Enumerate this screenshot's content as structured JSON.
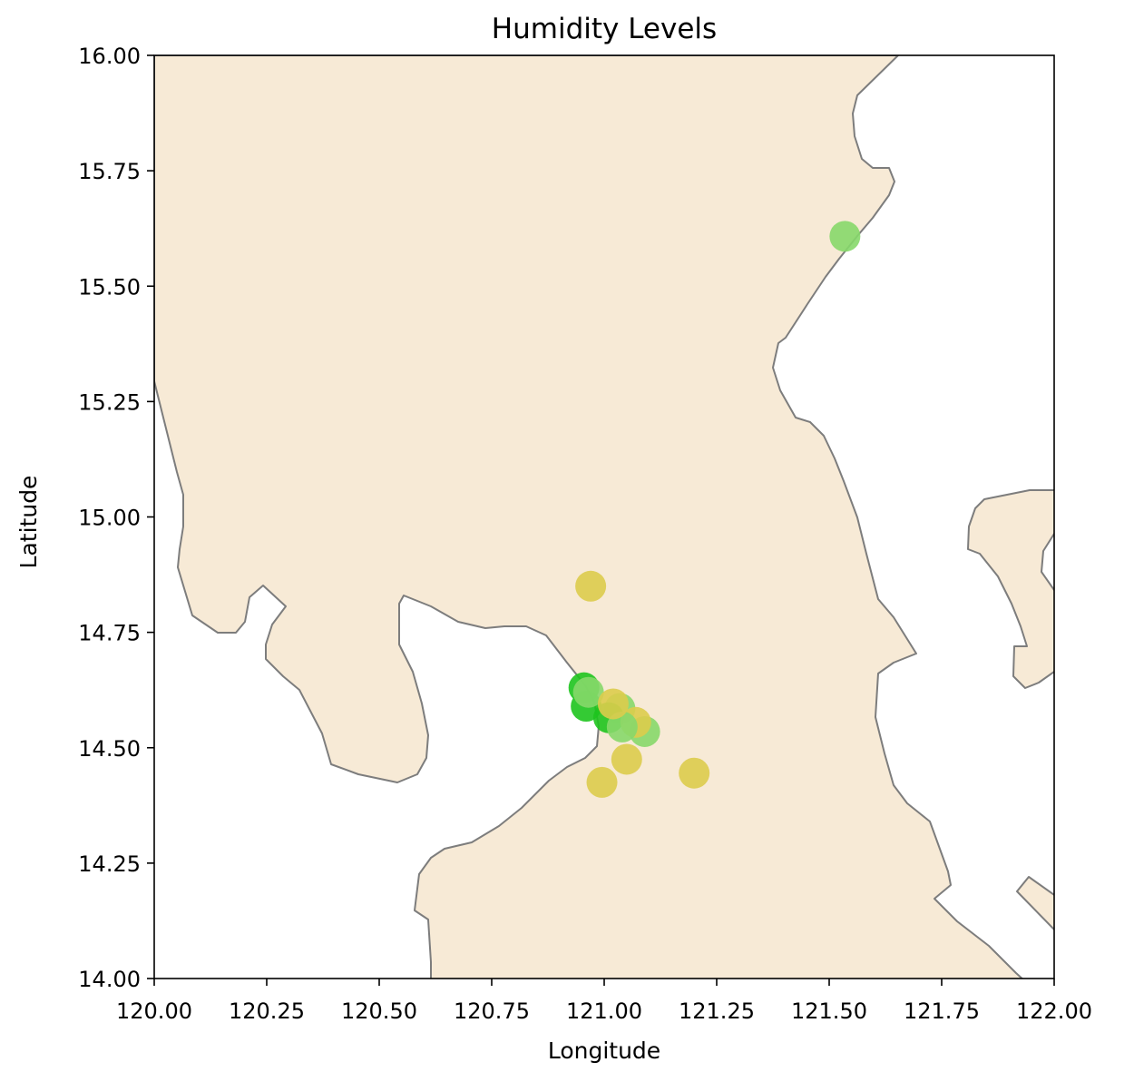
{
  "chart_data": {
    "type": "scatter",
    "title": "Humidity Levels",
    "xlabel": "Longitude",
    "ylabel": "Latitude",
    "xlim": [
      120.0,
      122.0
    ],
    "ylim": [
      14.0,
      16.0
    ],
    "x_ticks": [
      "120.00",
      "120.25",
      "120.50",
      "120.75",
      "121.00",
      "121.25",
      "121.50",
      "121.75",
      "122.00"
    ],
    "y_ticks": [
      "14.00",
      "14.25",
      "14.50",
      "14.75",
      "15.00",
      "15.25",
      "15.50",
      "15.75",
      "16.00"
    ],
    "grid": false,
    "colors": {
      "land": "#f7ead6",
      "coastline": "#7d7d7d",
      "frame": "#000000",
      "high_humidity": "#1ec41e",
      "mid_humidity": "#86d86a",
      "low_humidity": "#dccc4c"
    },
    "points": [
      {
        "lon": 121.535,
        "lat": 15.608,
        "level": "mid_humidity"
      },
      {
        "lon": 120.97,
        "lat": 14.85,
        "level": "low_humidity"
      },
      {
        "lon": 120.955,
        "lat": 14.63,
        "level": "high_humidity"
      },
      {
        "lon": 120.96,
        "lat": 14.59,
        "level": "high_humidity"
      },
      {
        "lon": 120.965,
        "lat": 14.62,
        "level": "mid_humidity"
      },
      {
        "lon": 121.035,
        "lat": 14.585,
        "level": "mid_humidity"
      },
      {
        "lon": 121.01,
        "lat": 14.565,
        "level": "high_humidity"
      },
      {
        "lon": 121.09,
        "lat": 14.535,
        "level": "mid_humidity"
      },
      {
        "lon": 121.07,
        "lat": 14.555,
        "level": "low_humidity"
      },
      {
        "lon": 121.04,
        "lat": 14.545,
        "level": "mid_humidity"
      },
      {
        "lon": 121.02,
        "lat": 14.595,
        "level": "low_humidity"
      },
      {
        "lon": 121.05,
        "lat": 14.475,
        "level": "low_humidity"
      },
      {
        "lon": 120.995,
        "lat": 14.425,
        "level": "low_humidity"
      },
      {
        "lon": 121.2,
        "lat": 14.445,
        "level": "low_humidity"
      }
    ]
  }
}
